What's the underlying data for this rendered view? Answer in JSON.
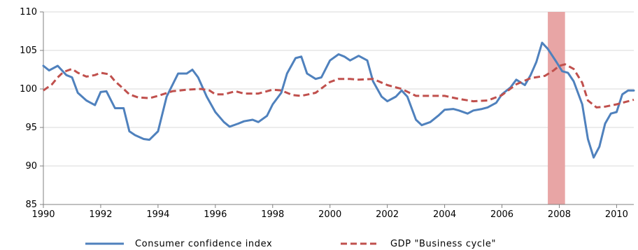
{
  "chart_data": {
    "type": "line",
    "title": "",
    "xlabel": "",
    "ylabel": "",
    "xlim": [
      1990,
      2010.6
    ],
    "ylim": [
      85,
      110
    ],
    "x_ticks": [
      "1990",
      "1992",
      "1994",
      "1996",
      "1998",
      "2000",
      "2002",
      "2004",
      "2006",
      "2008",
      "2010"
    ],
    "y_ticks": [
      "85",
      "90",
      "95",
      "100",
      "105",
      "110"
    ],
    "grid": "horizontal",
    "legend_position": "bottom",
    "recession_band": {
      "from": 2007.6,
      "to": 2008.2,
      "color": "#e8a5a5"
    },
    "series": [
      {
        "name": "Consumer confidence index",
        "color": "#4f81bd",
        "style": "solid",
        "points": [
          [
            1990.0,
            103.0
          ],
          [
            1990.2,
            102.4
          ],
          [
            1990.5,
            103.0
          ],
          [
            1990.8,
            101.8
          ],
          [
            1991.0,
            101.5
          ],
          [
            1991.2,
            99.5
          ],
          [
            1991.5,
            98.5
          ],
          [
            1991.8,
            97.9
          ],
          [
            1992.0,
            99.6
          ],
          [
            1992.2,
            99.7
          ],
          [
            1992.5,
            97.5
          ],
          [
            1992.8,
            97.5
          ],
          [
            1993.0,
            94.5
          ],
          [
            1993.2,
            94.0
          ],
          [
            1993.5,
            93.5
          ],
          [
            1993.7,
            93.4
          ],
          [
            1994.0,
            94.5
          ],
          [
            1994.3,
            99.0
          ],
          [
            1994.7,
            102.0
          ],
          [
            1995.0,
            102.0
          ],
          [
            1995.2,
            102.5
          ],
          [
            1995.4,
            101.5
          ],
          [
            1995.7,
            99.0
          ],
          [
            1996.0,
            97.0
          ],
          [
            1996.3,
            95.7
          ],
          [
            1996.5,
            95.1
          ],
          [
            1996.8,
            95.5
          ],
          [
            1997.0,
            95.8
          ],
          [
            1997.3,
            96.0
          ],
          [
            1997.5,
            95.7
          ],
          [
            1997.8,
            96.5
          ],
          [
            1998.0,
            98.0
          ],
          [
            1998.3,
            99.5
          ],
          [
            1998.5,
            102.0
          ],
          [
            1998.8,
            104.0
          ],
          [
            1999.0,
            104.2
          ],
          [
            1999.2,
            102.0
          ],
          [
            1999.5,
            101.3
          ],
          [
            1999.7,
            101.5
          ],
          [
            2000.0,
            103.7
          ],
          [
            2000.3,
            104.5
          ],
          [
            2000.5,
            104.2
          ],
          [
            2000.7,
            103.7
          ],
          [
            2001.0,
            104.3
          ],
          [
            2001.3,
            103.7
          ],
          [
            2001.5,
            101.0
          ],
          [
            2001.8,
            99.0
          ],
          [
            2002.0,
            98.4
          ],
          [
            2002.3,
            99.0
          ],
          [
            2002.5,
            99.8
          ],
          [
            2002.7,
            99.0
          ],
          [
            2003.0,
            96.0
          ],
          [
            2003.2,
            95.3
          ],
          [
            2003.5,
            95.7
          ],
          [
            2003.8,
            96.6
          ],
          [
            2004.0,
            97.3
          ],
          [
            2004.3,
            97.4
          ],
          [
            2004.5,
            97.2
          ],
          [
            2004.8,
            96.8
          ],
          [
            2005.0,
            97.2
          ],
          [
            2005.3,
            97.4
          ],
          [
            2005.5,
            97.6
          ],
          [
            2005.8,
            98.2
          ],
          [
            2006.0,
            99.3
          ],
          [
            2006.3,
            100.2
          ],
          [
            2006.5,
            101.2
          ],
          [
            2006.8,
            100.5
          ],
          [
            2007.0,
            101.8
          ],
          [
            2007.2,
            103.5
          ],
          [
            2007.4,
            106.0
          ],
          [
            2007.6,
            105.2
          ],
          [
            2007.9,
            103.5
          ],
          [
            2008.1,
            102.3
          ],
          [
            2008.3,
            102.1
          ],
          [
            2008.5,
            101.0
          ],
          [
            2008.8,
            98.0
          ],
          [
            2009.0,
            93.5
          ],
          [
            2009.2,
            91.1
          ],
          [
            2009.4,
            92.5
          ],
          [
            2009.6,
            95.5
          ],
          [
            2009.8,
            96.8
          ],
          [
            2010.0,
            97.0
          ],
          [
            2010.2,
            99.3
          ],
          [
            2010.4,
            99.8
          ],
          [
            2010.6,
            99.8
          ]
        ]
      },
      {
        "name": "GDP \"Business cycle\"",
        "color": "#c0504d",
        "style": "dashed",
        "points": [
          [
            1990.0,
            99.8
          ],
          [
            1990.3,
            100.6
          ],
          [
            1990.5,
            101.5
          ],
          [
            1990.7,
            102.2
          ],
          [
            1991.0,
            102.6
          ],
          [
            1991.2,
            102.1
          ],
          [
            1991.5,
            101.6
          ],
          [
            1991.8,
            101.8
          ],
          [
            1992.0,
            102.1
          ],
          [
            1992.3,
            101.9
          ],
          [
            1992.5,
            101.0
          ],
          [
            1992.8,
            100.0
          ],
          [
            1993.0,
            99.3
          ],
          [
            1993.3,
            98.9
          ],
          [
            1993.7,
            98.8
          ],
          [
            1994.0,
            99.1
          ],
          [
            1994.5,
            99.7
          ],
          [
            1995.0,
            99.9
          ],
          [
            1995.5,
            100.0
          ],
          [
            1995.8,
            99.8
          ],
          [
            1996.0,
            99.3
          ],
          [
            1996.3,
            99.3
          ],
          [
            1996.7,
            99.7
          ],
          [
            1997.0,
            99.4
          ],
          [
            1997.5,
            99.4
          ],
          [
            1998.0,
            99.9
          ],
          [
            1998.3,
            99.8
          ],
          [
            1998.7,
            99.2
          ],
          [
            1999.0,
            99.1
          ],
          [
            1999.5,
            99.5
          ],
          [
            2000.0,
            100.9
          ],
          [
            2000.3,
            101.3
          ],
          [
            2000.7,
            101.3
          ],
          [
            2001.0,
            101.2
          ],
          [
            2001.5,
            101.3
          ],
          [
            2002.0,
            100.5
          ],
          [
            2002.5,
            100.0
          ],
          [
            2003.0,
            99.1
          ],
          [
            2003.5,
            99.1
          ],
          [
            2004.0,
            99.1
          ],
          [
            2004.5,
            98.7
          ],
          [
            2005.0,
            98.4
          ],
          [
            2005.5,
            98.5
          ],
          [
            2006.0,
            99.2
          ],
          [
            2006.5,
            100.6
          ],
          [
            2007.0,
            101.4
          ],
          [
            2007.5,
            101.7
          ],
          [
            2007.8,
            102.4
          ],
          [
            2008.0,
            103.0
          ],
          [
            2008.2,
            103.2
          ],
          [
            2008.5,
            102.6
          ],
          [
            2008.8,
            100.8
          ],
          [
            2009.0,
            98.5
          ],
          [
            2009.3,
            97.6
          ],
          [
            2009.6,
            97.7
          ],
          [
            2010.0,
            98.0
          ],
          [
            2010.3,
            98.3
          ],
          [
            2010.6,
            98.6
          ]
        ]
      }
    ]
  }
}
